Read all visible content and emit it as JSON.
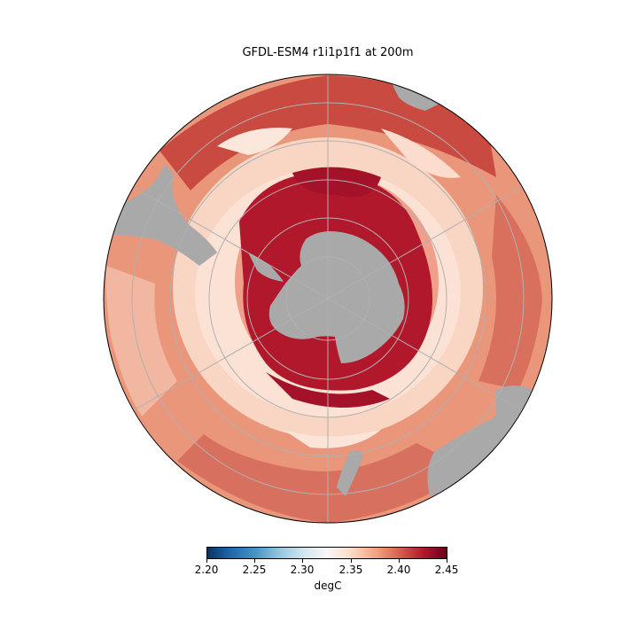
{
  "title": "GFDL-ESM4 r1i1p1f1 at 200m",
  "colorbar": {
    "label": "degC",
    "ticks": [
      "2.20",
      "2.25",
      "2.30",
      "2.35",
      "2.40",
      "2.45"
    ],
    "range": [
      2.2,
      2.45
    ],
    "colors": [
      "#053061",
      "#2166ac",
      "#4393c3",
      "#92c5de",
      "#d1e5f0",
      "#f7f7f7",
      "#fddbc7",
      "#f4a582",
      "#d6604d",
      "#b2182b",
      "#67001f"
    ]
  },
  "map": {
    "projection": "south polar stereographic",
    "gridlines": true,
    "land_color": "#a9a9a9",
    "variable": "ocean temperature"
  }
}
